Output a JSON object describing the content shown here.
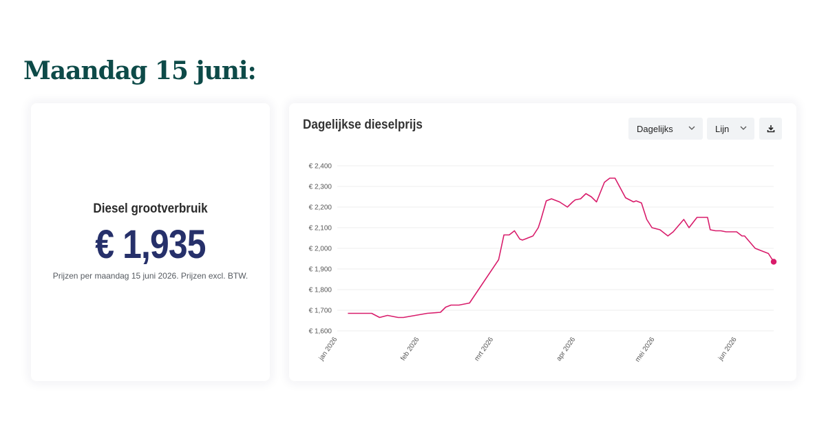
{
  "heading": "Maandag 15 juni:",
  "summary": {
    "label": "Diesel grootverbruik",
    "price": "€ 1,935",
    "note": "Prijzen per maandag 15 juni 2026. Prijzen excl. BTW."
  },
  "chart_panel": {
    "title": "Dagelijkse dieselprijs",
    "interval_select": "Dagelijks",
    "type_select": "Lijn",
    "download_icon": "download-icon",
    "chevron_icon": "chevron-down-icon"
  },
  "colors": {
    "heading": "#0d4a48",
    "price": "#26306a",
    "series": "#d81b6a"
  },
  "chart_data": {
    "type": "line",
    "title": "",
    "xlabel": "",
    "ylabel": "",
    "ylim": [
      1600,
      2400
    ],
    "y_ticks": [
      1600,
      1700,
      1800,
      1900,
      2000,
      2100,
      2200,
      2300,
      2400
    ],
    "y_tick_labels": [
      "€ 1,600",
      "€ 1,700",
      "€ 1,800",
      "€ 1,900",
      "€ 2,000",
      "€ 2,100",
      "€ 2,200",
      "€ 2,300",
      "€ 2,400"
    ],
    "x_range": [
      "2026-01-01",
      "2026-06-15"
    ],
    "x_ticks": [
      "2026-01-01",
      "2026-02-01",
      "2026-03-01",
      "2026-04-01",
      "2026-05-01",
      "2026-06-01"
    ],
    "x_tick_labels": [
      "jan 2026",
      "feb 2026",
      "mrt 2026",
      "apr 2026",
      "mei 2026",
      "jun 2026"
    ],
    "grid": true,
    "legend": "none",
    "last_point_marker": true,
    "series": [
      {
        "x": [
          "2026-01-05",
          "2026-01-14",
          "2026-01-17",
          "2026-01-20",
          "2026-01-24",
          "2026-01-26",
          "2026-02-04",
          "2026-02-09",
          "2026-02-11",
          "2026-02-13",
          "2026-02-16",
          "2026-02-20",
          "2026-03-03",
          "2026-03-05",
          "2026-03-07",
          "2026-03-09",
          "2026-03-11",
          "2026-03-12",
          "2026-03-14",
          "2026-03-16",
          "2026-03-18",
          "2026-03-19",
          "2026-03-21",
          "2026-03-23",
          "2026-03-26",
          "2026-03-29",
          "2026-03-31",
          "2026-04-01",
          "2026-04-03",
          "2026-04-05",
          "2026-04-07",
          "2026-04-09",
          "2026-04-12",
          "2026-04-14",
          "2026-04-16",
          "2026-04-20",
          "2026-04-23",
          "2026-04-24",
          "2026-04-26",
          "2026-04-28",
          "2026-04-30",
          "2026-05-03",
          "2026-05-06",
          "2026-05-08",
          "2026-05-12",
          "2026-05-14",
          "2026-05-17",
          "2026-05-21",
          "2026-05-22",
          "2026-05-24",
          "2026-05-26",
          "2026-05-28",
          "2026-05-30",
          "2026-06-01",
          "2026-06-03",
          "2026-06-04",
          "2026-06-08",
          "2026-06-11",
          "2026-06-13",
          "2026-06-15"
        ],
        "y": [
          1685,
          1685,
          1665,
          1675,
          1665,
          1665,
          1685,
          1690,
          1715,
          1725,
          1725,
          1735,
          1945,
          2065,
          2065,
          2085,
          2045,
          2040,
          2050,
          2060,
          2100,
          2140,
          2230,
          2240,
          2225,
          2200,
          2225,
          2235,
          2240,
          2265,
          2250,
          2225,
          2320,
          2340,
          2340,
          2245,
          2225,
          2230,
          2220,
          2140,
          2100,
          2090,
          2060,
          2080,
          2140,
          2100,
          2150,
          2150,
          2090,
          2085,
          2085,
          2080,
          2080,
          2080,
          2060,
          2060,
          2000,
          1985,
          1975,
          1935
        ]
      }
    ]
  }
}
